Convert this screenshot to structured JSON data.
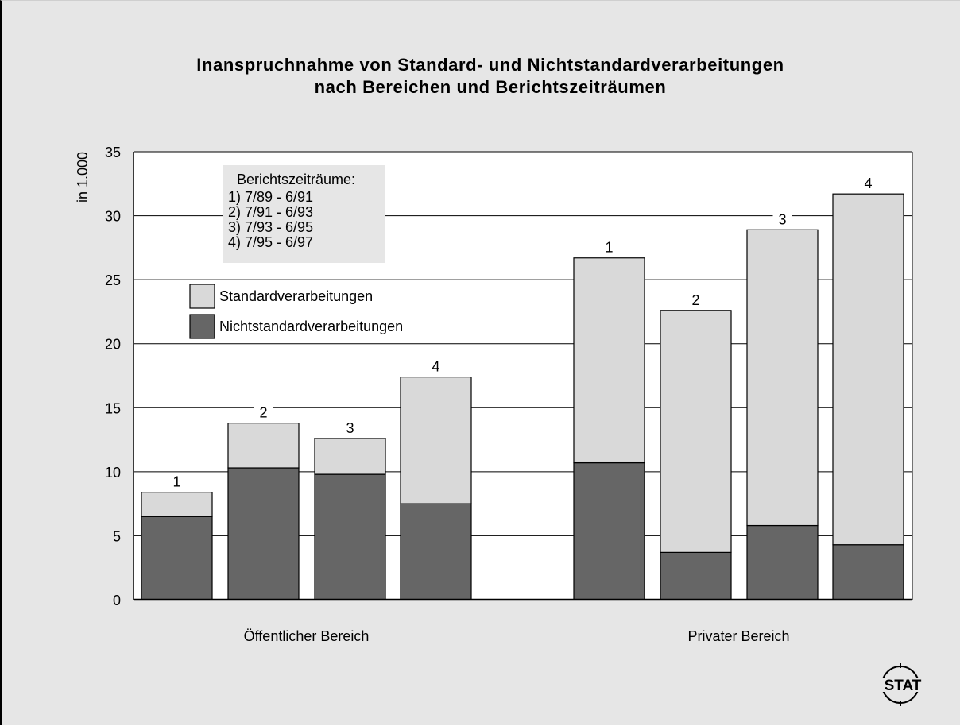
{
  "colors": {
    "background": "#e6e6e6",
    "plot_background": "#ffffff",
    "standard": "#d9d9d9",
    "nonstandard": "#666666",
    "gridline": "#000000"
  },
  "logo_text": "STAT",
  "chart_data": {
    "type": "bar",
    "stacked": true,
    "title": "Inanspruchnahme von Standard- und Nichtstandardverarbeitungen",
    "subtitle": "nach Bereichen und Berichtszeiträumen",
    "ylabel": "in 1.000",
    "ylim": [
      0,
      35
    ],
    "yticks": [
      "0",
      "5",
      "10",
      "15",
      "20",
      "25",
      "30",
      "35"
    ],
    "grid": true,
    "groups": [
      "Öffentlicher Bereich",
      "Privater Bereich"
    ],
    "categories": [
      "1",
      "2",
      "3",
      "4"
    ],
    "series": [
      {
        "name": "Nichtstandardverarbeitungen",
        "values": [
          [
            6.5,
            10.3,
            9.8,
            7.5
          ],
          [
            10.7,
            3.7,
            5.8,
            4.3
          ]
        ]
      },
      {
        "name": "Standardverarbeitungen",
        "values": [
          [
            1.9,
            3.5,
            2.8,
            9.9
          ],
          [
            16.0,
            18.9,
            23.1,
            27.4
          ]
        ]
      }
    ],
    "legend": {
      "placement": "top-left",
      "items": [
        "Standardverarbeitungen",
        "Nichtstandardverarbeitungen"
      ]
    },
    "period_box": {
      "heading": "Berichtszeiträume:",
      "items": [
        "1) 7/89 - 6/91",
        "2) 7/91 - 6/93",
        "3) 7/93 - 6/95",
        "4) 7/95 - 6/97"
      ]
    }
  }
}
